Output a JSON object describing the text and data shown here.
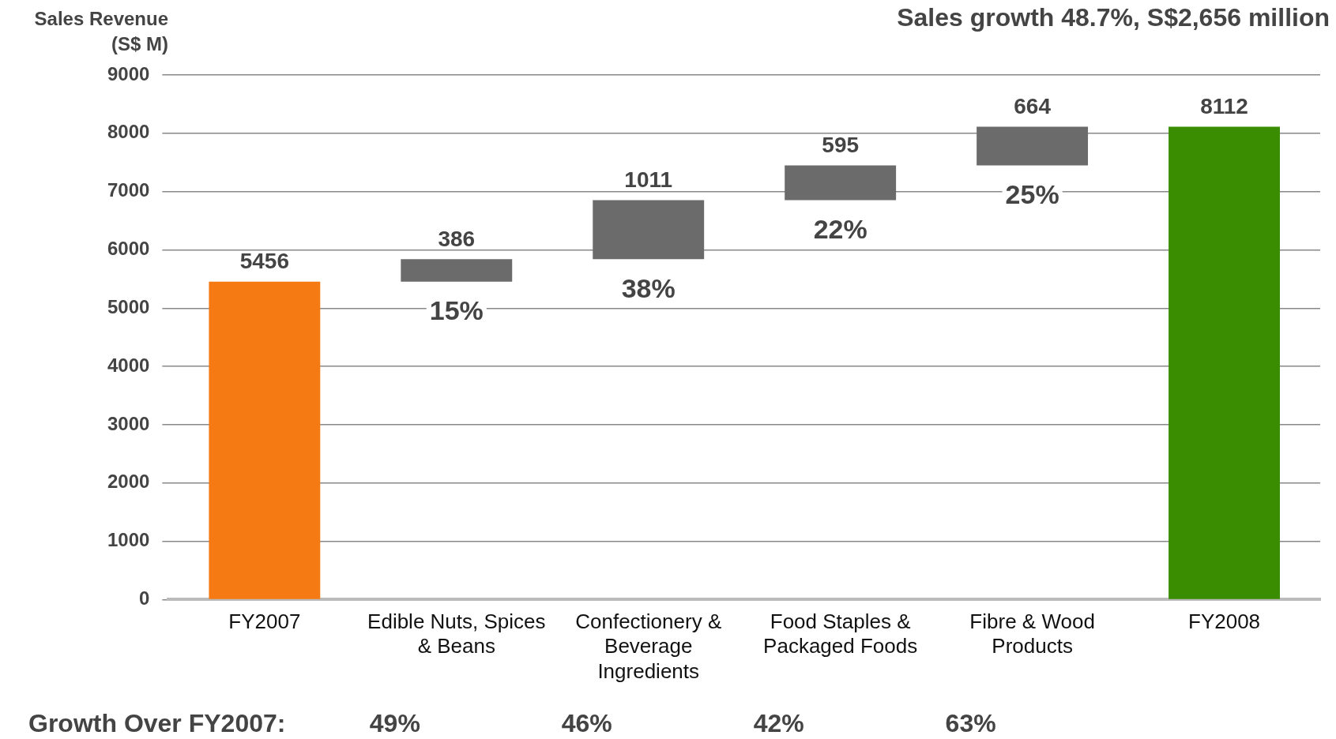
{
  "chart_data": {
    "type": "bar",
    "title": "Sales growth 48.7%, S$2,656 million",
    "ylabel": "Sales Revenue (S$ M)",
    "categories": [
      "FY2007",
      "Edible Nuts, Spices & Beans",
      "Confectionery & Beverage Ingredients",
      "Food Staples & Packaged Foods",
      "Fibre & Wood Products",
      "FY2008"
    ],
    "values": [
      5456,
      386,
      1011,
      595,
      664,
      8112
    ],
    "base": [
      0,
      5456,
      5842,
      6853,
      7448,
      0
    ],
    "colors": [
      "#f57a14",
      "#6b6b6b",
      "#6b6b6b",
      "#6b6b6b",
      "#6b6b6b",
      "#3a8c00"
    ],
    "ylim": [
      0,
      9000
    ],
    "yticks": [
      0,
      1000,
      2000,
      3000,
      4000,
      5000,
      6000,
      7000,
      8000,
      9000
    ],
    "grid": "y",
    "legend": false,
    "data_labels": true,
    "annotations": [
      "15%",
      "38%",
      "22%",
      "25%",
      "Growth Over FY2007:",
      "49%",
      "46%",
      "42%",
      "63%"
    ]
  }
}
